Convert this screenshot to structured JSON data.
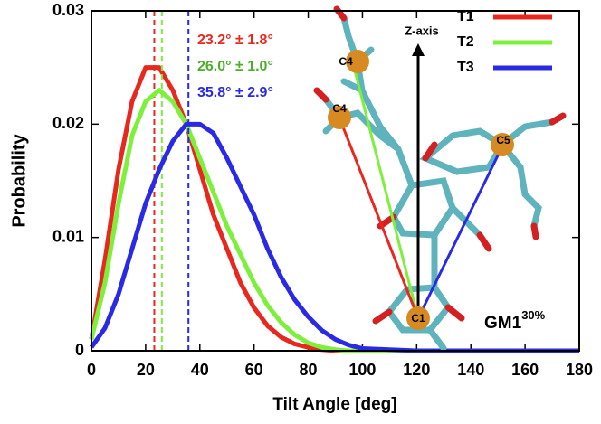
{
  "chart_data": {
    "type": "line",
    "xlabel": "Tilt Angle [deg]",
    "ylabel": "Probability",
    "x": [
      0,
      5,
      10,
      15,
      20,
      25,
      30,
      35,
      40,
      45,
      50,
      55,
      60,
      65,
      70,
      75,
      80,
      85,
      90,
      95,
      100,
      110,
      120,
      180
    ],
    "series": [
      {
        "name": "T1",
        "color": "#e8281e",
        "mean": 23.2,
        "annotation": "23.2° ± 1.8°",
        "values": [
          0.001,
          0.008,
          0.016,
          0.022,
          0.025,
          0.025,
          0.023,
          0.02,
          0.016,
          0.012,
          0.009,
          0.006,
          0.0038,
          0.0022,
          0.0012,
          0.0006,
          0.0003,
          0.0001,
          0,
          0,
          0,
          0,
          0,
          0
        ]
      },
      {
        "name": "T2",
        "color": "#7cf03a",
        "mean": 26.0,
        "annotation": "26.0° ± 1.0°",
        "values": [
          0.001,
          0.006,
          0.013,
          0.019,
          0.022,
          0.023,
          0.022,
          0.02,
          0.017,
          0.014,
          0.011,
          0.0085,
          0.006,
          0.004,
          0.0025,
          0.0014,
          0.0007,
          0.0003,
          0.0001,
          0,
          0,
          0,
          0,
          0
        ]
      },
      {
        "name": "T3",
        "color": "#2a2ae6",
        "mean": 35.8,
        "annotation": "35.8° ± 2.9°",
        "values": [
          0.0003,
          0.002,
          0.005,
          0.009,
          0.013,
          0.016,
          0.0185,
          0.02,
          0.02,
          0.0192,
          0.017,
          0.0145,
          0.012,
          0.009,
          0.0065,
          0.0045,
          0.003,
          0.0018,
          0.001,
          0.0005,
          0.0002,
          0.0001,
          0,
          0
        ]
      }
    ],
    "annotation_colors": [
      "#e8281e",
      "#4caf2a",
      "#2a2ae6"
    ],
    "xlim": [
      0,
      180
    ],
    "xticks": [
      0,
      20,
      40,
      60,
      80,
      100,
      120,
      140,
      160,
      180
    ],
    "ylim": [
      0,
      0.03
    ],
    "yticks": [
      0,
      0.01,
      0.02,
      0.03
    ],
    "legend": "upper right",
    "inset": {
      "axis_label": "Z-axis",
      "atoms": [
        "C1",
        "C4",
        "C4",
        "C5"
      ],
      "label": "GM1",
      "label_sup": "30%"
    }
  }
}
